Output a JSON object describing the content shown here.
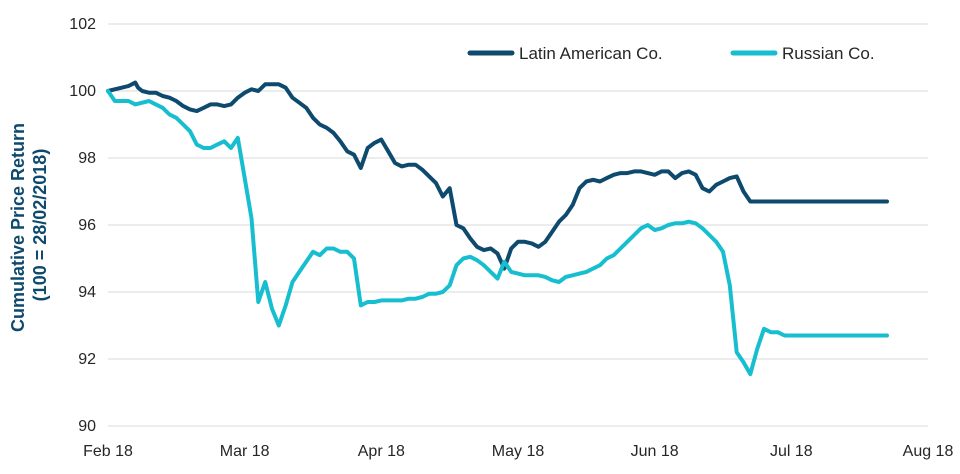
{
  "chart_data": {
    "type": "line",
    "title": "",
    "xlabel": "",
    "ylabel": "Cumulative Price Return",
    "ylabel_sub": "(100 = 28/02/2018)",
    "ylim": [
      90,
      102
    ],
    "yticks": [
      90,
      92,
      94,
      96,
      98,
      100,
      102
    ],
    "x_range": [
      0,
      6
    ],
    "xticks": [
      {
        "x": 0,
        "label": "Feb 18"
      },
      {
        "x": 1,
        "label": "Mar 18"
      },
      {
        "x": 2,
        "label": "Apr 18"
      },
      {
        "x": 3,
        "label": "May 18"
      },
      {
        "x": 4,
        "label": "Jun 18"
      },
      {
        "x": 5,
        "label": "Jul 18"
      },
      {
        "x": 6,
        "label": "Aug 18"
      }
    ],
    "grid": true,
    "legend_position": "top-right",
    "series": [
      {
        "name": "Latin American Co.",
        "color": "#0e4a6e",
        "x": [
          0,
          0.05,
          0.1,
          0.15,
          0.2,
          0.22,
          0.25,
          0.3,
          0.35,
          0.4,
          0.45,
          0.5,
          0.55,
          0.6,
          0.65,
          0.7,
          0.75,
          0.8,
          0.85,
          0.9,
          0.95,
          1.0,
          1.05,
          1.1,
          1.15,
          1.2,
          1.25,
          1.3,
          1.35,
          1.4,
          1.45,
          1.5,
          1.55,
          1.6,
          1.65,
          1.7,
          1.75,
          1.8,
          1.85,
          1.9,
          1.95,
          2.0,
          2.05,
          2.1,
          2.15,
          2.2,
          2.25,
          2.3,
          2.35,
          2.4,
          2.45,
          2.5,
          2.55,
          2.6,
          2.65,
          2.7,
          2.75,
          2.8,
          2.85,
          2.9,
          2.95,
          3.0,
          3.05,
          3.1,
          3.15,
          3.2,
          3.25,
          3.3,
          3.35,
          3.4,
          3.45,
          3.5,
          3.55,
          3.6,
          3.65,
          3.7,
          3.75,
          3.8,
          3.85,
          3.9,
          3.95,
          4.0,
          4.05,
          4.1,
          4.15,
          4.2,
          4.25,
          4.3,
          4.35,
          4.4,
          4.45,
          4.5,
          4.55,
          4.6,
          4.65,
          4.7,
          4.75,
          4.8,
          4.85,
          4.9,
          4.95,
          5.0,
          5.05,
          5.1,
          5.15,
          5.2,
          5.25,
          5.3,
          5.35,
          5.4,
          5.45,
          5.5,
          5.55,
          5.6,
          5.65,
          5.7
        ],
        "values": [
          100.0,
          100.05,
          100.1,
          100.15,
          100.25,
          100.1,
          100.0,
          99.95,
          99.95,
          99.85,
          99.8,
          99.7,
          99.55,
          99.45,
          99.4,
          99.5,
          99.6,
          99.6,
          99.55,
          99.6,
          99.8,
          99.95,
          100.05,
          100.0,
          100.2,
          100.2,
          100.2,
          100.1,
          99.8,
          99.65,
          99.5,
          99.2,
          99.0,
          98.9,
          98.75,
          98.5,
          98.2,
          98.1,
          97.7,
          98.3,
          98.45,
          98.55,
          98.2,
          97.85,
          97.75,
          97.8,
          97.8,
          97.65,
          97.45,
          97.25,
          96.85,
          97.1,
          96.0,
          95.9,
          95.6,
          95.35,
          95.25,
          95.3,
          95.15,
          94.7,
          95.3,
          95.5,
          95.5,
          95.45,
          95.35,
          95.5,
          95.8,
          96.1,
          96.3,
          96.6,
          97.1,
          97.3,
          97.35,
          97.3,
          97.4,
          97.5,
          97.55,
          97.55,
          97.6,
          97.6,
          97.55,
          97.5,
          97.6,
          97.6,
          97.4,
          97.55,
          97.6,
          97.5,
          97.1,
          97.0,
          97.2,
          97.3,
          97.4,
          97.45,
          97.0,
          96.7,
          96.7,
          96.7,
          96.7,
          96.7,
          96.7,
          96.7,
          96.7,
          96.7,
          96.7,
          96.7,
          96.7,
          96.7,
          96.7,
          96.7,
          96.7,
          96.7,
          96.7,
          96.7,
          96.7,
          96.7
        ]
      },
      {
        "name": "Russian Co.",
        "color": "#17becf",
        "x": [
          0,
          0.05,
          0.1,
          0.15,
          0.2,
          0.25,
          0.3,
          0.35,
          0.4,
          0.45,
          0.5,
          0.55,
          0.6,
          0.65,
          0.7,
          0.75,
          0.8,
          0.85,
          0.9,
          0.95,
          1.0,
          1.05,
          1.1,
          1.15,
          1.2,
          1.25,
          1.3,
          1.35,
          1.4,
          1.45,
          1.5,
          1.55,
          1.6,
          1.65,
          1.7,
          1.75,
          1.8,
          1.85,
          1.9,
          1.95,
          2.0,
          2.05,
          2.1,
          2.15,
          2.2,
          2.25,
          2.3,
          2.35,
          2.4,
          2.45,
          2.5,
          2.55,
          2.6,
          2.65,
          2.7,
          2.75,
          2.8,
          2.85,
          2.9,
          2.95,
          3.0,
          3.05,
          3.1,
          3.15,
          3.2,
          3.25,
          3.3,
          3.35,
          3.4,
          3.45,
          3.5,
          3.55,
          3.6,
          3.65,
          3.7,
          3.75,
          3.8,
          3.85,
          3.9,
          3.95,
          4.0,
          4.05,
          4.1,
          4.15,
          4.2,
          4.25,
          4.3,
          4.35,
          4.4,
          4.45,
          4.5,
          4.55,
          4.6,
          4.65,
          4.7,
          4.75,
          4.8,
          4.85,
          4.9,
          4.95,
          5.0,
          5.05,
          5.1,
          5.15,
          5.2,
          5.25,
          5.3,
          5.35,
          5.4,
          5.45,
          5.5,
          5.55,
          5.6,
          5.65,
          5.7
        ],
        "values": [
          100.0,
          99.7,
          99.7,
          99.7,
          99.6,
          99.65,
          99.7,
          99.6,
          99.5,
          99.3,
          99.2,
          99.0,
          98.8,
          98.4,
          98.3,
          98.3,
          98.4,
          98.5,
          98.3,
          98.6,
          97.4,
          96.2,
          93.7,
          94.3,
          93.5,
          93.0,
          93.6,
          94.3,
          94.6,
          94.9,
          95.2,
          95.1,
          95.3,
          95.3,
          95.2,
          95.2,
          95.0,
          93.6,
          93.7,
          93.7,
          93.75,
          93.75,
          93.75,
          93.75,
          93.8,
          93.8,
          93.85,
          93.95,
          93.95,
          94.0,
          94.2,
          94.8,
          95.0,
          95.05,
          94.95,
          94.8,
          94.6,
          94.4,
          94.9,
          94.6,
          94.55,
          94.5,
          94.5,
          94.5,
          94.45,
          94.35,
          94.3,
          94.45,
          94.5,
          94.55,
          94.6,
          94.7,
          94.8,
          95.0,
          95.1,
          95.3,
          95.5,
          95.7,
          95.9,
          96.0,
          95.85,
          95.9,
          96.0,
          96.05,
          96.05,
          96.1,
          96.05,
          95.9,
          95.7,
          95.5,
          95.2,
          94.2,
          92.2,
          91.9,
          91.55,
          92.3,
          92.9,
          92.8,
          92.8,
          92.7,
          92.7,
          92.7,
          92.7,
          92.7,
          92.7,
          92.7,
          92.7,
          92.7,
          92.7,
          92.7,
          92.7,
          92.7,
          92.7,
          92.7,
          92.7
        ]
      }
    ]
  }
}
